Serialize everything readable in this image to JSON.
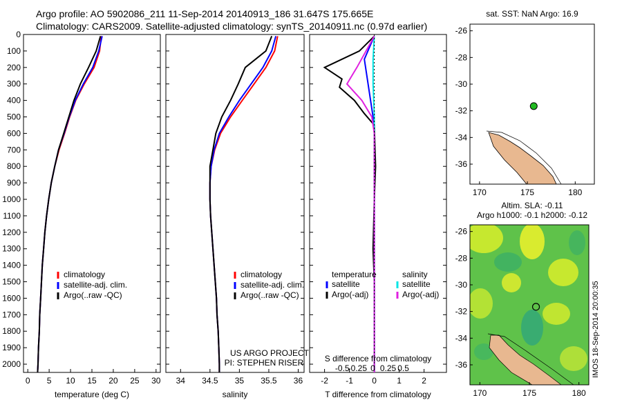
{
  "header": {
    "line1": "Argo profile: AO 5902086_211 11-Sep-2014 20140913_186 31.647S 175.665E",
    "line2": "Climatology: CARS2009. Satellite-adjusted climatology: synTS_20140911.nc (0.97d earlier)"
  },
  "colors": {
    "climatology": "#ff0000",
    "satellite": "#0000ff",
    "argo": "#000000",
    "salinity_satellite": "#00e5e5",
    "salinity_argo": "#e020e0",
    "land": "#e8b890",
    "sla_map": "#7ad23c"
  },
  "project": {
    "line1": "US ARGO PROJECT",
    "line2": "PI: STEPHEN RISER"
  },
  "timestamp": "IMOS 18-Sep-2014 20:00:35",
  "chart_data": [
    {
      "type": "line",
      "id": "temperature",
      "xlabel": "temperature (deg C)",
      "ylabel": "",
      "xlim": [
        -1,
        31
      ],
      "ylim": [
        2050,
        0
      ],
      "xticks": [
        0,
        5,
        10,
        15,
        20,
        25,
        30
      ],
      "yticks": [
        0,
        100,
        200,
        300,
        400,
        500,
        600,
        700,
        800,
        900,
        1000,
        1100,
        1200,
        1300,
        1400,
        1500,
        1600,
        1700,
        1800,
        1900,
        2000
      ],
      "legend": [
        "climatology",
        "satellite-adj. clim.",
        "Argo(..raw -QC)"
      ],
      "legend_position": "lower-right",
      "series": [
        {
          "name": "climatology",
          "color": "#ff0000",
          "points": [
            [
              17.2,
              10
            ],
            [
              16.8,
              100
            ],
            [
              15.5,
              200
            ],
            [
              13.2,
              300
            ],
            [
              11.2,
              400
            ],
            [
              9.8,
              500
            ],
            [
              8.6,
              600
            ],
            [
              7.3,
              700
            ],
            [
              6.3,
              800
            ],
            [
              5.5,
              900
            ],
            [
              4.9,
              1000
            ],
            [
              4.4,
              1100
            ],
            [
              4.0,
              1200
            ],
            [
              3.7,
              1300
            ],
            [
              3.4,
              1400
            ],
            [
              3.2,
              1500
            ],
            [
              3.0,
              1600
            ],
            [
              2.8,
              1700
            ],
            [
              2.7,
              1800
            ],
            [
              2.5,
              1900
            ],
            [
              2.4,
              2000
            ],
            [
              2.3,
              2050
            ]
          ]
        },
        {
          "name": "satellite-adj. clim.",
          "color": "#0000ff",
          "points": [
            [
              17.4,
              10
            ],
            [
              16.6,
              100
            ],
            [
              15.2,
              200
            ],
            [
              13.0,
              300
            ],
            [
              11.1,
              400
            ],
            [
              9.7,
              500
            ],
            [
              8.5,
              600
            ],
            [
              7.2,
              700
            ],
            [
              6.3,
              800
            ],
            [
              5.5,
              900
            ],
            [
              4.9,
              1000
            ],
            [
              4.4,
              1100
            ],
            [
              4.0,
              1200
            ],
            [
              3.7,
              1300
            ],
            [
              3.4,
              1400
            ],
            [
              3.2,
              1500
            ],
            [
              3.0,
              1600
            ],
            [
              2.8,
              1700
            ],
            [
              2.7,
              1800
            ],
            [
              2.5,
              1900
            ],
            [
              2.4,
              2000
            ],
            [
              2.3,
              2050
            ]
          ]
        },
        {
          "name": "Argo(..raw -QC)",
          "color": "#000000",
          "points": [
            [
              17.0,
              10
            ],
            [
              16.0,
              100
            ],
            [
              14.2,
              200
            ],
            [
              12.3,
              300
            ],
            [
              10.8,
              400
            ],
            [
              9.6,
              500
            ],
            [
              8.4,
              600
            ],
            [
              7.2,
              700
            ],
            [
              6.3,
              800
            ],
            [
              5.5,
              900
            ],
            [
              4.9,
              1000
            ],
            [
              4.4,
              1100
            ],
            [
              4.0,
              1200
            ],
            [
              3.7,
              1300
            ],
            [
              3.4,
              1400
            ],
            [
              3.2,
              1500
            ],
            [
              3.0,
              1600
            ],
            [
              2.8,
              1700
            ],
            [
              2.7,
              1800
            ],
            [
              2.5,
              1900
            ],
            [
              2.4,
              2000
            ],
            [
              2.3,
              2050
            ]
          ]
        }
      ]
    },
    {
      "type": "line",
      "id": "salinity",
      "xlabel": "salinity",
      "ylabel": "",
      "xlim": [
        33.75,
        36.1
      ],
      "ylim": [
        2050,
        0
      ],
      "xticks": [
        34,
        34.5,
        35,
        35.5,
        36
      ],
      "legend": [
        "climatology",
        "satellite-adj. clim.",
        "Argo(..raw -QC)"
      ],
      "legend_position": "lower-right",
      "series": [
        {
          "name": "climatology",
          "color": "#ff0000",
          "points": [
            [
              35.65,
              10
            ],
            [
              35.6,
              100
            ],
            [
              35.45,
              200
            ],
            [
              35.25,
              300
            ],
            [
              35.05,
              400
            ],
            [
              34.85,
              500
            ],
            [
              34.68,
              600
            ],
            [
              34.58,
              700
            ],
            [
              34.52,
              800
            ],
            [
              34.5,
              900
            ],
            [
              34.5,
              1000
            ],
            [
              34.51,
              1100
            ],
            [
              34.53,
              1200
            ],
            [
              34.55,
              1300
            ],
            [
              34.57,
              1400
            ],
            [
              34.59,
              1500
            ],
            [
              34.61,
              1600
            ],
            [
              34.62,
              1700
            ],
            [
              34.64,
              1800
            ],
            [
              34.65,
              1900
            ],
            [
              34.66,
              2000
            ],
            [
              34.66,
              2050
            ]
          ]
        },
        {
          "name": "satellite-adj. clim.",
          "color": "#0000ff",
          "points": [
            [
              35.62,
              10
            ],
            [
              35.55,
              100
            ],
            [
              35.4,
              200
            ],
            [
              35.2,
              300
            ],
            [
              35.0,
              400
            ],
            [
              34.82,
              500
            ],
            [
              34.66,
              600
            ],
            [
              34.57,
              700
            ],
            [
              34.52,
              800
            ],
            [
              34.5,
              900
            ],
            [
              34.5,
              1000
            ],
            [
              34.51,
              1100
            ],
            [
              34.53,
              1200
            ],
            [
              34.55,
              1300
            ],
            [
              34.57,
              1400
            ],
            [
              34.59,
              1500
            ],
            [
              34.61,
              1600
            ],
            [
              34.62,
              1700
            ],
            [
              34.64,
              1800
            ],
            [
              34.65,
              1900
            ],
            [
              34.66,
              2000
            ],
            [
              34.66,
              2050
            ]
          ]
        },
        {
          "name": "Argo(..raw -QC)",
          "color": "#000000",
          "points": [
            [
              35.55,
              10
            ],
            [
              35.45,
              100
            ],
            [
              35.1,
              200
            ],
            [
              34.98,
              300
            ],
            [
              34.85,
              400
            ],
            [
              34.7,
              500
            ],
            [
              34.6,
              600
            ],
            [
              34.55,
              700
            ],
            [
              34.5,
              800
            ],
            [
              34.5,
              900
            ],
            [
              34.5,
              1000
            ],
            [
              34.51,
              1100
            ],
            [
              34.53,
              1200
            ],
            [
              34.55,
              1300
            ],
            [
              34.57,
              1400
            ],
            [
              34.59,
              1500
            ],
            [
              34.61,
              1600
            ],
            [
              34.62,
              1700
            ],
            [
              34.64,
              1800
            ],
            [
              34.65,
              1900
            ],
            [
              34.66,
              2000
            ],
            [
              34.66,
              2050
            ]
          ]
        }
      ]
    },
    {
      "type": "line",
      "id": "differences",
      "xlabel": "T difference from climatology",
      "x2label": "S difference from climatology",
      "xlim": [
        -2.6,
        2.9
      ],
      "ylim": [
        2050,
        0
      ],
      "xticks": [
        -2,
        -1,
        0,
        1,
        2
      ],
      "x2ticks": [
        -0.5,
        -0.25,
        0,
        0.25,
        0.5
      ],
      "x2ticklabels": [
        "-0.5",
        "-0.25",
        "0",
        "0.25",
        "0.5"
      ],
      "legend": [
        "temperature",
        "satellite",
        "Argo(-adj)",
        "salinity",
        "satellite",
        "Argo(-adj)"
      ],
      "legend_position": "lower-center",
      "series": [
        {
          "name": "temperature satellite",
          "color": "#0000ff",
          "points": [
            [
              0,
              10
            ],
            [
              -0.2,
              80
            ],
            [
              -0.4,
              150
            ],
            [
              -0.3,
              250
            ],
            [
              -0.2,
              350
            ],
            [
              -0.1,
              450
            ],
            [
              0,
              550
            ],
            [
              0,
              700
            ],
            [
              0,
              900
            ],
            [
              0,
              1200
            ],
            [
              0,
              1500
            ],
            [
              0,
              2050
            ]
          ]
        },
        {
          "name": "temperature Argo(-adj)",
          "color": "#000000",
          "points": [
            [
              0,
              10
            ],
            [
              -0.6,
              100
            ],
            [
              -2.0,
              200
            ],
            [
              -1.3,
              270
            ],
            [
              -1.4,
              320
            ],
            [
              -0.8,
              400
            ],
            [
              -0.4,
              480
            ],
            [
              0,
              550
            ],
            [
              0.05,
              800
            ],
            [
              0,
              1000
            ],
            [
              -0.05,
              1300
            ],
            [
              0,
              1500
            ],
            [
              0,
              2050
            ]
          ]
        },
        {
          "name": "salinity satellite",
          "color": "#00e5e5",
          "points": [
            [
              0,
              10
            ],
            [
              -0.05,
              150
            ],
            [
              -0.05,
              300
            ],
            [
              0,
              500
            ],
            [
              0,
              800
            ],
            [
              0,
              1200
            ],
            [
              0,
              2050
            ]
          ]
        },
        {
          "name": "salinity Argo(-adj)",
          "color": "#e020e0",
          "points": [
            [
              0,
              10
            ],
            [
              -0.7,
              200
            ],
            [
              -1.1,
              300
            ],
            [
              -0.5,
              400
            ],
            [
              -0.1,
              500
            ],
            [
              0,
              600
            ],
            [
              0,
              800
            ],
            [
              0,
              2050
            ]
          ]
        }
      ]
    },
    {
      "type": "scatter",
      "id": "sst-map",
      "title": "sat. SST: NaN Argo: 16.9",
      "xlim": [
        169,
        182
      ],
      "ylim": [
        -37.5,
        -25.5
      ],
      "xticks": [
        170,
        175,
        180
      ],
      "yticks": [
        -26,
        -28,
        -30,
        -32,
        -34,
        -36
      ],
      "argo_position": {
        "lon": 175.665,
        "lat": -31.647
      }
    },
    {
      "type": "heatmap",
      "id": "sla-map",
      "title_line1": "Altim. SLA: -0.11",
      "title_line2": "Argo h1000: -0.1 h2000: -0.12",
      "xlim": [
        169,
        181
      ],
      "ylim": [
        -37.5,
        -25.5
      ],
      "xticks": [
        170,
        175,
        180
      ],
      "yticks": [
        -26,
        -28,
        -30,
        -32,
        -34,
        -36
      ],
      "argo_position": {
        "lon": 175.665,
        "lat": -31.647
      }
    }
  ]
}
